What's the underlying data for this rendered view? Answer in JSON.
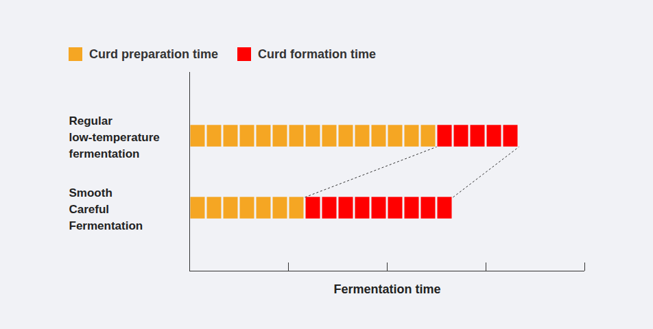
{
  "chart_data": {
    "type": "bar",
    "orientation": "horizontal",
    "stacked": true,
    "categories": [
      "Regular low-temperature fermentation",
      "Smooth Careful Fermentation"
    ],
    "series": [
      {
        "name": "Curd preparation time",
        "color": "#F5A623",
        "values": [
          15,
          7
        ]
      },
      {
        "name": "Curd formation time",
        "color": "#FF0000",
        "values": [
          5,
          9
        ]
      }
    ],
    "x_label": "Fermentation time",
    "xlim": [
      0,
      24
    ],
    "xticks": [
      0,
      6,
      12,
      18,
      24
    ],
    "tick_labels": false,
    "legend": "top-left"
  }
}
